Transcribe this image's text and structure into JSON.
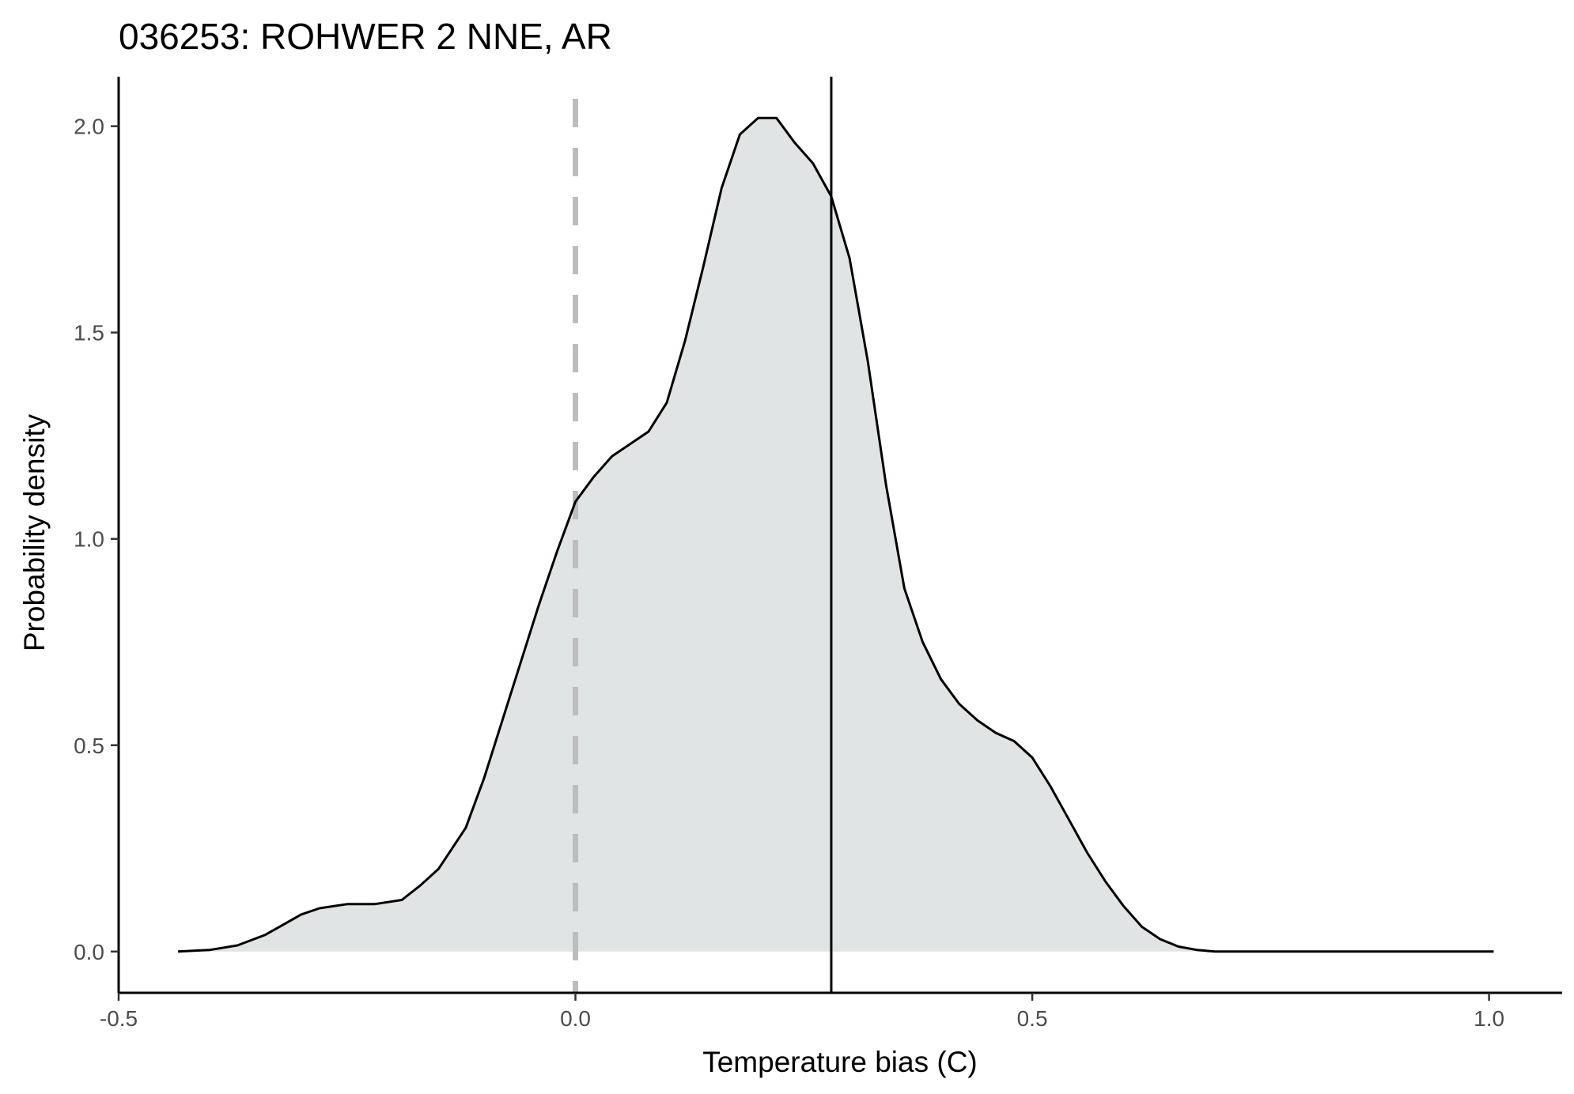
{
  "chart_data": {
    "type": "area",
    "title": "036253: ROHWER 2 NNE, AR",
    "xlabel": "Temperature bias (C)",
    "ylabel": "Probability density",
    "xlim": [
      -0.5,
      1.08
    ],
    "ylim": [
      -0.1,
      2.12
    ],
    "x_ticks": [
      -0.5,
      0.0,
      0.5,
      1.0
    ],
    "x_tick_labels": [
      "-0.5",
      "0.0",
      "0.5",
      "1.0"
    ],
    "y_ticks": [
      0.0,
      0.5,
      1.0,
      1.5,
      2.0
    ],
    "y_tick_labels": [
      "0.0",
      "0.5",
      "1.0",
      "1.5",
      "2.0"
    ],
    "grid": false,
    "reference_lines": [
      {
        "x": 0.0,
        "style": "dashed",
        "color": "#bdbdbd"
      },
      {
        "x": 0.28,
        "style": "solid",
        "color": "#000000"
      }
    ],
    "series": [
      {
        "fill": "#e1e4e5",
        "stroke": "#000000",
        "x": [
          -0.435,
          -0.4,
          -0.37,
          -0.34,
          -0.32,
          -0.3,
          -0.28,
          -0.25,
          -0.22,
          -0.19,
          -0.17,
          -0.15,
          -0.12,
          -0.1,
          -0.08,
          -0.06,
          -0.04,
          -0.02,
          0.0,
          0.02,
          0.04,
          0.06,
          0.08,
          0.1,
          0.12,
          0.14,
          0.16,
          0.18,
          0.2,
          0.22,
          0.24,
          0.26,
          0.28,
          0.3,
          0.32,
          0.34,
          0.36,
          0.38,
          0.4,
          0.42,
          0.44,
          0.46,
          0.48,
          0.5,
          0.52,
          0.54,
          0.56,
          0.58,
          0.6,
          0.62,
          0.64,
          0.66,
          0.68,
          0.7,
          0.72,
          0.74,
          0.76,
          0.78,
          0.8,
          0.82,
          0.84,
          0.86,
          0.88,
          0.9,
          0.92,
          0.94,
          0.96,
          0.98,
          1.005
        ],
        "y": [
          0.0,
          0.004,
          0.015,
          0.04,
          0.065,
          0.09,
          0.105,
          0.115,
          0.115,
          0.125,
          0.16,
          0.2,
          0.3,
          0.42,
          0.56,
          0.7,
          0.84,
          0.97,
          1.09,
          1.15,
          1.2,
          1.23,
          1.26,
          1.33,
          1.48,
          1.66,
          1.85,
          1.98,
          2.02,
          2.02,
          1.96,
          1.91,
          1.83,
          1.68,
          1.43,
          1.13,
          0.88,
          0.75,
          0.66,
          0.6,
          0.56,
          0.53,
          0.51,
          0.47,
          0.4,
          0.32,
          0.24,
          0.17,
          0.11,
          0.06,
          0.03,
          0.012,
          0.004,
          0.0,
          0.0,
          0.0,
          0.0,
          0.0,
          0.0,
          0.0,
          0.0,
          0.0,
          0.0,
          0.0,
          0.0,
          0.0,
          0.0,
          0.0,
          0.0
        ]
      }
    ]
  }
}
